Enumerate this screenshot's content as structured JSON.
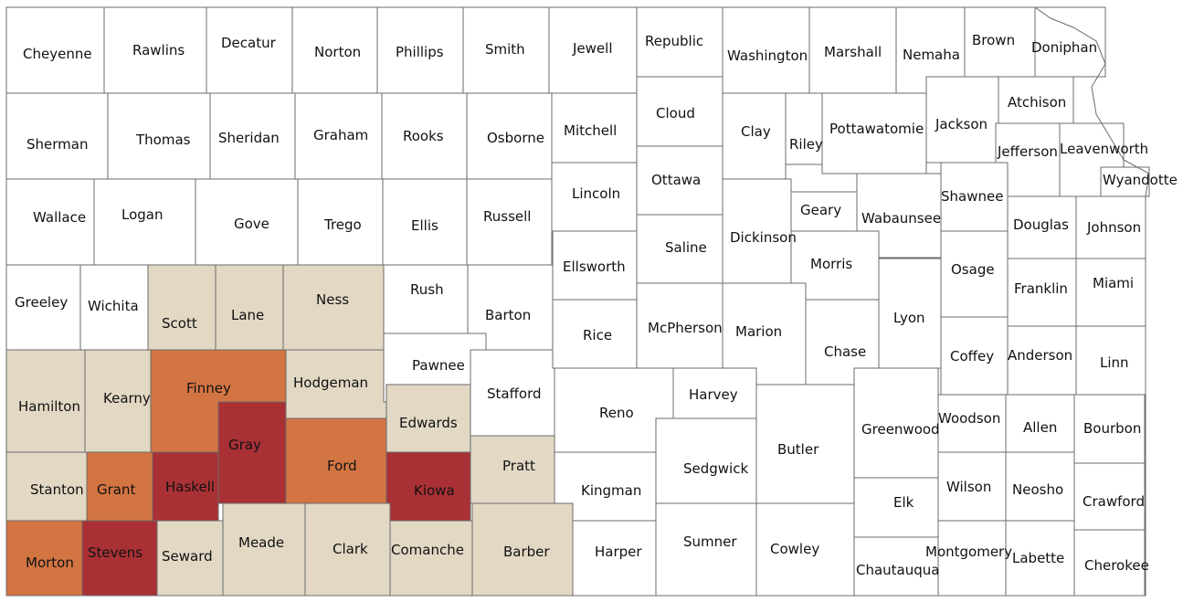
{
  "colors": {
    "none": "#ffffff",
    "low": "#e2d8c4",
    "medium": "#d37543",
    "high": "#a93135",
    "border": "#6b6b6b"
  },
  "counties": [
    {
      "name": "Cheyenne",
      "level": "none"
    },
    {
      "name": "Rawlins",
      "level": "none"
    },
    {
      "name": "Decatur",
      "level": "none"
    },
    {
      "name": "Norton",
      "level": "none"
    },
    {
      "name": "Phillips",
      "level": "none"
    },
    {
      "name": "Smith",
      "level": "none"
    },
    {
      "name": "Jewell",
      "level": "none"
    },
    {
      "name": "Republic",
      "level": "none"
    },
    {
      "name": "Washington",
      "level": "none"
    },
    {
      "name": "Marshall",
      "level": "none"
    },
    {
      "name": "Nemaha",
      "level": "none"
    },
    {
      "name": "Brown",
      "level": "none"
    },
    {
      "name": "Doniphan",
      "level": "none"
    },
    {
      "name": "Sherman",
      "level": "none"
    },
    {
      "name": "Thomas",
      "level": "none"
    },
    {
      "name": "Sheridan",
      "level": "none"
    },
    {
      "name": "Graham",
      "level": "none"
    },
    {
      "name": "Rooks",
      "level": "none"
    },
    {
      "name": "Osborne",
      "level": "none"
    },
    {
      "name": "Mitchell",
      "level": "none"
    },
    {
      "name": "Cloud",
      "level": "none"
    },
    {
      "name": "Clay",
      "level": "none"
    },
    {
      "name": "Riley",
      "level": "none"
    },
    {
      "name": "Pottawatomie",
      "level": "none"
    },
    {
      "name": "Jackson",
      "level": "none"
    },
    {
      "name": "Atchison",
      "level": "none"
    },
    {
      "name": "Jefferson",
      "level": "none"
    },
    {
      "name": "Leavenworth",
      "level": "none"
    },
    {
      "name": "Wyandotte",
      "level": "none"
    },
    {
      "name": "Wallace",
      "level": "none"
    },
    {
      "name": "Logan",
      "level": "none"
    },
    {
      "name": "Gove",
      "level": "none"
    },
    {
      "name": "Trego",
      "level": "none"
    },
    {
      "name": "Ellis",
      "level": "none"
    },
    {
      "name": "Russell",
      "level": "none"
    },
    {
      "name": "Lincoln",
      "level": "none"
    },
    {
      "name": "Ottawa",
      "level": "none"
    },
    {
      "name": "Dickinson",
      "level": "none"
    },
    {
      "name": "Geary",
      "level": "none"
    },
    {
      "name": "Wabaunsee",
      "level": "none"
    },
    {
      "name": "Shawnee",
      "level": "none"
    },
    {
      "name": "Douglas",
      "level": "none"
    },
    {
      "name": "Johnson",
      "level": "none"
    },
    {
      "name": "Greeley",
      "level": "none"
    },
    {
      "name": "Wichita",
      "level": "none"
    },
    {
      "name": "Scott",
      "level": "low"
    },
    {
      "name": "Lane",
      "level": "low"
    },
    {
      "name": "Ness",
      "level": "low"
    },
    {
      "name": "Rush",
      "level": "none"
    },
    {
      "name": "Barton",
      "level": "none"
    },
    {
      "name": "Ellsworth",
      "level": "none"
    },
    {
      "name": "Saline",
      "level": "none"
    },
    {
      "name": "Morris",
      "level": "none"
    },
    {
      "name": "Osage",
      "level": "none"
    },
    {
      "name": "Franklin",
      "level": "none"
    },
    {
      "name": "Miami",
      "level": "none"
    },
    {
      "name": "Hamilton",
      "level": "low"
    },
    {
      "name": "Kearny",
      "level": "low"
    },
    {
      "name": "Finney",
      "level": "medium"
    },
    {
      "name": "Hodgeman",
      "level": "low"
    },
    {
      "name": "Pawnee",
      "level": "none"
    },
    {
      "name": "Stafford",
      "level": "none"
    },
    {
      "name": "Rice",
      "level": "none"
    },
    {
      "name": "McPherson",
      "level": "none"
    },
    {
      "name": "Marion",
      "level": "none"
    },
    {
      "name": "Chase",
      "level": "none"
    },
    {
      "name": "Lyon",
      "level": "none"
    },
    {
      "name": "Coffey",
      "level": "none"
    },
    {
      "name": "Anderson",
      "level": "none"
    },
    {
      "name": "Linn",
      "level": "none"
    },
    {
      "name": "Gray",
      "level": "high"
    },
    {
      "name": "Ford",
      "level": "medium"
    },
    {
      "name": "Edwards",
      "level": "low"
    },
    {
      "name": "Reno",
      "level": "none"
    },
    {
      "name": "Harvey",
      "level": "none"
    },
    {
      "name": "Butler",
      "level": "none"
    },
    {
      "name": "Greenwood",
      "level": "none"
    },
    {
      "name": "Woodson",
      "level": "none"
    },
    {
      "name": "Allen",
      "level": "none"
    },
    {
      "name": "Bourbon",
      "level": "none"
    },
    {
      "name": "Stanton",
      "level": "low"
    },
    {
      "name": "Grant",
      "level": "medium"
    },
    {
      "name": "Haskell",
      "level": "high"
    },
    {
      "name": "Kiowa",
      "level": "high"
    },
    {
      "name": "Pratt",
      "level": "low"
    },
    {
      "name": "Kingman",
      "level": "none"
    },
    {
      "name": "Sedgwick",
      "level": "none"
    },
    {
      "name": "Elk",
      "level": "none"
    },
    {
      "name": "Wilson",
      "level": "none"
    },
    {
      "name": "Neosho",
      "level": "none"
    },
    {
      "name": "Crawford",
      "level": "none"
    },
    {
      "name": "Morton",
      "level": "medium"
    },
    {
      "name": "Stevens",
      "level": "high"
    },
    {
      "name": "Seward",
      "level": "low"
    },
    {
      "name": "Meade",
      "level": "low"
    },
    {
      "name": "Clark",
      "level": "low"
    },
    {
      "name": "Comanche",
      "level": "low"
    },
    {
      "name": "Barber",
      "level": "low"
    },
    {
      "name": "Harper",
      "level": "none"
    },
    {
      "name": "Sumner",
      "level": "none"
    },
    {
      "name": "Cowley",
      "level": "none"
    },
    {
      "name": "Chautauqua",
      "level": "none"
    },
    {
      "name": "Montgomery",
      "level": "none"
    },
    {
      "name": "Labette",
      "level": "none"
    },
    {
      "name": "Cherokee",
      "level": "none"
    }
  ]
}
